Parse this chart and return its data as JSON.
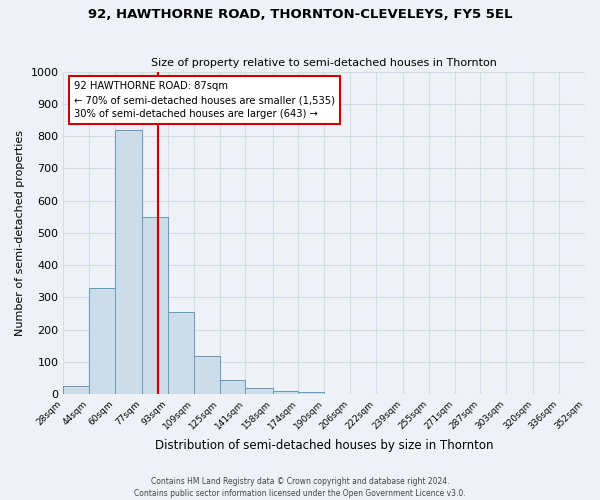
{
  "title": "92, HAWTHORNE ROAD, THORNTON-CLEVELEYS, FY5 5EL",
  "subtitle": "Size of property relative to semi-detached houses in Thornton",
  "xlabel": "Distribution of semi-detached houses by size in Thornton",
  "ylabel": "Number of semi-detached properties",
  "bin_edges": [
    28,
    44,
    60,
    77,
    93,
    109,
    125,
    141,
    158,
    174,
    190,
    206,
    222,
    239,
    255,
    271,
    287,
    303,
    320,
    336,
    352
  ],
  "bin_heights": [
    25,
    330,
    820,
    550,
    255,
    117,
    45,
    20,
    10,
    8,
    0,
    0,
    0,
    0,
    0,
    0,
    0,
    0,
    0,
    0
  ],
  "bar_facecolor": "#ccdce8",
  "bar_edgecolor": "#6699bb",
  "property_size": 87,
  "vline_color": "#cc0000",
  "annotation_line1": "92 HAWTHORNE ROAD: 87sqm",
  "annotation_line2": "← 70% of semi-detached houses are smaller (1,535)",
  "annotation_line3": "30% of semi-detached houses are larger (643) →",
  "annotation_box_edgecolor": "#cc0000",
  "annotation_box_facecolor": "#ffffff",
  "ylim": [
    0,
    1000
  ],
  "yticks": [
    0,
    100,
    200,
    300,
    400,
    500,
    600,
    700,
    800,
    900,
    1000
  ],
  "grid_color": "#d0dce8",
  "background_color": "#eef2f7",
  "footer_text": "Contains HM Land Registry data © Crown copyright and database right 2024.\nContains public sector information licensed under the Open Government Licence v3.0.",
  "tick_labels": [
    "28sqm",
    "44sqm",
    "60sqm",
    "77sqm",
    "93sqm",
    "109sqm",
    "125sqm",
    "141sqm",
    "158sqm",
    "174sqm",
    "190sqm",
    "206sqm",
    "222sqm",
    "239sqm",
    "255sqm",
    "271sqm",
    "287sqm",
    "303sqm",
    "320sqm",
    "336sqm",
    "352sqm"
  ]
}
